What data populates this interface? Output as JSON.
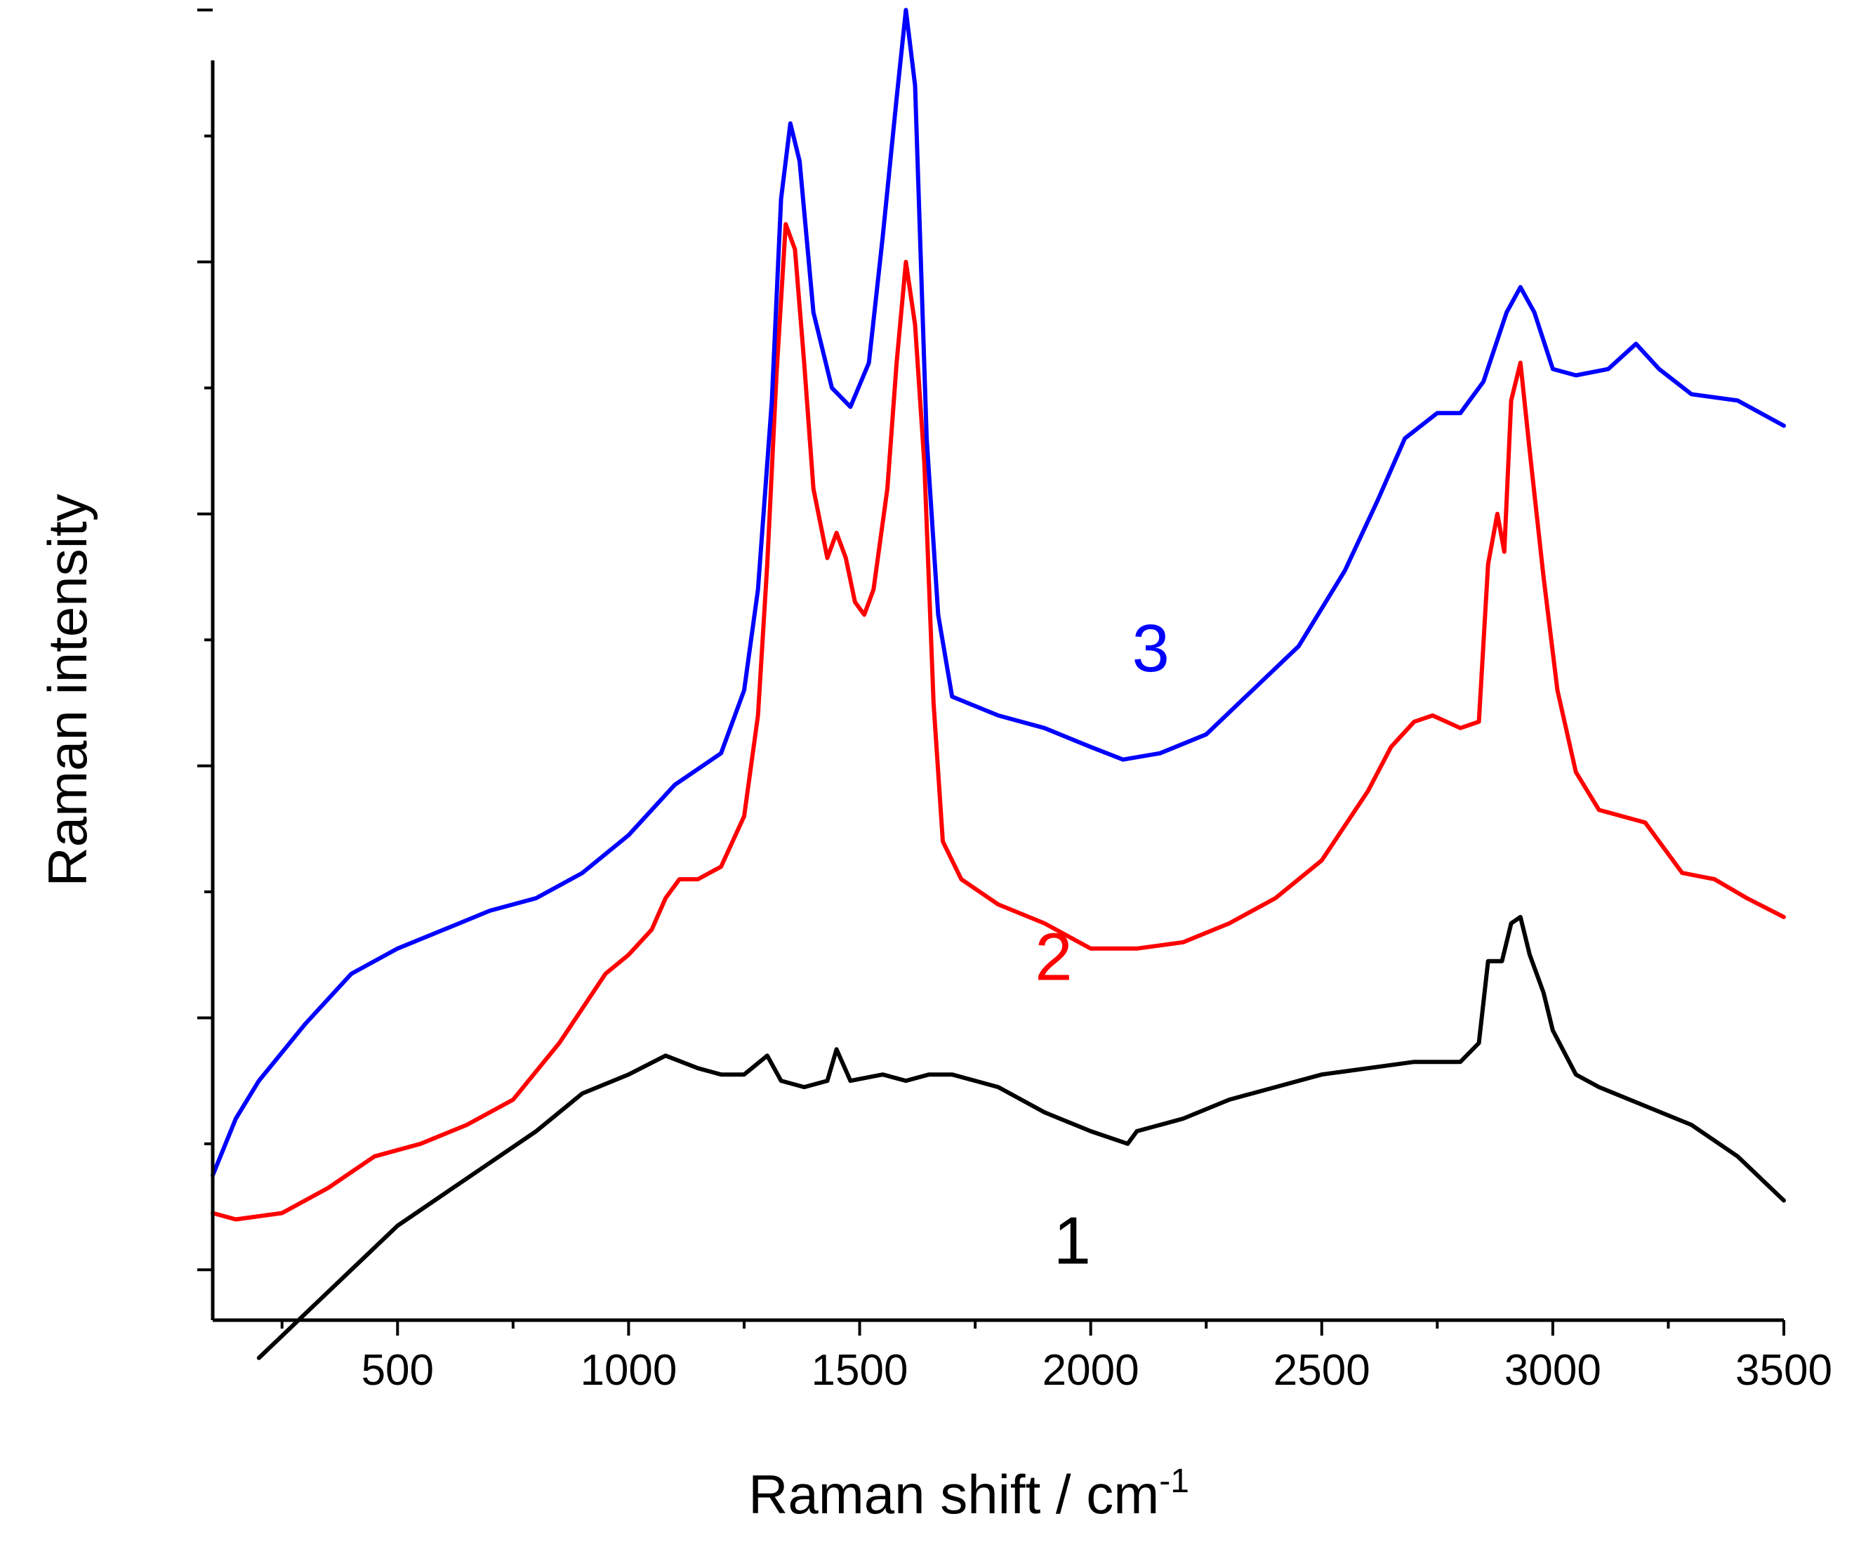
{
  "chart_data": {
    "type": "line",
    "title": "",
    "xlabel": "Raman shift / cm",
    "xlabel_superscript": "-1",
    "ylabel": "Raman intensity",
    "xlim": [
      100,
      3500
    ],
    "ylim": [
      0,
      10
    ],
    "x_ticks": [
      500,
      1000,
      1500,
      2000,
      2500,
      3000,
      3500
    ],
    "x_tick_labels": [
      "500",
      "1000",
      "1500",
      "2000",
      "2500",
      "3000",
      "3500"
    ],
    "x_minor_step": 250,
    "y_major_ticks": [
      0.4,
      2.4,
      4.4,
      6.4,
      8.4,
      10.4
    ],
    "y_minor_ticks": [
      1.4,
      3.4,
      5.4,
      7.4,
      9.4
    ],
    "y_tick_labels_shown": false,
    "grid": false,
    "series": [
      {
        "name": "1",
        "label": "1",
        "color": "#000000",
        "label_x": 1960,
        "label_y": 0.45,
        "points": [
          [
            200,
            -0.3
          ],
          [
            300,
            0.05
          ],
          [
            400,
            0.4
          ],
          [
            500,
            0.75
          ],
          [
            600,
            1.0
          ],
          [
            700,
            1.25
          ],
          [
            800,
            1.5
          ],
          [
            900,
            1.8
          ],
          [
            1000,
            1.95
          ],
          [
            1080,
            2.1
          ],
          [
            1150,
            2.0
          ],
          [
            1200,
            1.95
          ],
          [
            1250,
            1.95
          ],
          [
            1300,
            2.1
          ],
          [
            1330,
            1.9
          ],
          [
            1380,
            1.85
          ],
          [
            1430,
            1.9
          ],
          [
            1450,
            2.15
          ],
          [
            1480,
            1.9
          ],
          [
            1550,
            1.95
          ],
          [
            1600,
            1.9
          ],
          [
            1650,
            1.95
          ],
          [
            1700,
            1.95
          ],
          [
            1800,
            1.85
          ],
          [
            1900,
            1.65
          ],
          [
            2000,
            1.5
          ],
          [
            2080,
            1.4
          ],
          [
            2100,
            1.5
          ],
          [
            2200,
            1.6
          ],
          [
            2300,
            1.75
          ],
          [
            2400,
            1.85
          ],
          [
            2500,
            1.95
          ],
          [
            2600,
            2.0
          ],
          [
            2700,
            2.05
          ],
          [
            2800,
            2.05
          ],
          [
            2840,
            2.2
          ],
          [
            2860,
            2.85
          ],
          [
            2890,
            2.85
          ],
          [
            2910,
            3.15
          ],
          [
            2930,
            3.2
          ],
          [
            2950,
            2.9
          ],
          [
            2980,
            2.6
          ],
          [
            3000,
            2.3
          ],
          [
            3050,
            1.95
          ],
          [
            3100,
            1.85
          ],
          [
            3200,
            1.7
          ],
          [
            3300,
            1.55
          ],
          [
            3400,
            1.3
          ],
          [
            3500,
            0.95
          ]
        ]
      },
      {
        "name": "2",
        "label": "2",
        "color": "#ff0000",
        "label_x": 1920,
        "label_y": 2.7,
        "points": [
          [
            100,
            0.85
          ],
          [
            150,
            0.8
          ],
          [
            250,
            0.85
          ],
          [
            350,
            1.05
          ],
          [
            450,
            1.3
          ],
          [
            550,
            1.4
          ],
          [
            650,
            1.55
          ],
          [
            750,
            1.75
          ],
          [
            850,
            2.2
          ],
          [
            950,
            2.75
          ],
          [
            1000,
            2.9
          ],
          [
            1050,
            3.1
          ],
          [
            1080,
            3.35
          ],
          [
            1110,
            3.5
          ],
          [
            1150,
            3.5
          ],
          [
            1200,
            3.6
          ],
          [
            1250,
            4.0
          ],
          [
            1280,
            4.8
          ],
          [
            1300,
            6.0
          ],
          [
            1320,
            7.5
          ],
          [
            1340,
            8.7
          ],
          [
            1360,
            8.5
          ],
          [
            1380,
            7.6
          ],
          [
            1400,
            6.6
          ],
          [
            1430,
            6.05
          ],
          [
            1450,
            6.25
          ],
          [
            1470,
            6.05
          ],
          [
            1490,
            5.7
          ],
          [
            1510,
            5.6
          ],
          [
            1530,
            5.8
          ],
          [
            1560,
            6.6
          ],
          [
            1580,
            7.6
          ],
          [
            1600,
            8.4
          ],
          [
            1620,
            7.9
          ],
          [
            1640,
            6.8
          ],
          [
            1660,
            4.9
          ],
          [
            1680,
            3.8
          ],
          [
            1720,
            3.5
          ],
          [
            1800,
            3.3
          ],
          [
            1900,
            3.15
          ],
          [
            2000,
            2.95
          ],
          [
            2100,
            2.95
          ],
          [
            2200,
            3.0
          ],
          [
            2300,
            3.15
          ],
          [
            2400,
            3.35
          ],
          [
            2500,
            3.65
          ],
          [
            2600,
            4.2
          ],
          [
            2650,
            4.55
          ],
          [
            2700,
            4.75
          ],
          [
            2740,
            4.8
          ],
          [
            2800,
            4.7
          ],
          [
            2840,
            4.75
          ],
          [
            2860,
            6.0
          ],
          [
            2880,
            6.4
          ],
          [
            2895,
            6.1
          ],
          [
            2910,
            7.3
          ],
          [
            2930,
            7.6
          ],
          [
            2950,
            6.9
          ],
          [
            2980,
            5.9
          ],
          [
            3010,
            5.0
          ],
          [
            3050,
            4.35
          ],
          [
            3100,
            4.05
          ],
          [
            3200,
            3.95
          ],
          [
            3280,
            3.55
          ],
          [
            3350,
            3.5
          ],
          [
            3420,
            3.35
          ],
          [
            3500,
            3.2
          ]
        ]
      },
      {
        "name": "3",
        "label": "3",
        "color": "#0000ff",
        "label_x": 2130,
        "label_y": 5.15,
        "points": [
          [
            100,
            1.15
          ],
          [
            150,
            1.6
          ],
          [
            200,
            1.9
          ],
          [
            300,
            2.35
          ],
          [
            400,
            2.75
          ],
          [
            500,
            2.95
          ],
          [
            600,
            3.1
          ],
          [
            700,
            3.25
          ],
          [
            800,
            3.35
          ],
          [
            900,
            3.55
          ],
          [
            1000,
            3.85
          ],
          [
            1100,
            4.25
          ],
          [
            1200,
            4.5
          ],
          [
            1250,
            5.0
          ],
          [
            1280,
            5.8
          ],
          [
            1310,
            7.3
          ],
          [
            1330,
            8.9
          ],
          [
            1350,
            9.5
          ],
          [
            1370,
            9.2
          ],
          [
            1400,
            8.0
          ],
          [
            1440,
            7.4
          ],
          [
            1480,
            7.25
          ],
          [
            1520,
            7.6
          ],
          [
            1550,
            8.6
          ],
          [
            1580,
            9.7
          ],
          [
            1600,
            10.4
          ],
          [
            1620,
            9.8
          ],
          [
            1645,
            7.0
          ],
          [
            1670,
            5.6
          ],
          [
            1700,
            4.95
          ],
          [
            1800,
            4.8
          ],
          [
            1900,
            4.7
          ],
          [
            2000,
            4.55
          ],
          [
            2070,
            4.45
          ],
          [
            2150,
            4.5
          ],
          [
            2250,
            4.65
          ],
          [
            2350,
            5.0
          ],
          [
            2450,
            5.35
          ],
          [
            2550,
            5.95
          ],
          [
            2620,
            6.5
          ],
          [
            2680,
            7.0
          ],
          [
            2750,
            7.2
          ],
          [
            2800,
            7.2
          ],
          [
            2850,
            7.45
          ],
          [
            2900,
            8.0
          ],
          [
            2930,
            8.2
          ],
          [
            2960,
            8.0
          ],
          [
            3000,
            7.55
          ],
          [
            3050,
            7.5
          ],
          [
            3120,
            7.55
          ],
          [
            3180,
            7.75
          ],
          [
            3230,
            7.55
          ],
          [
            3300,
            7.35
          ],
          [
            3400,
            7.3
          ],
          [
            3500,
            7.1
          ]
        ]
      }
    ]
  }
}
